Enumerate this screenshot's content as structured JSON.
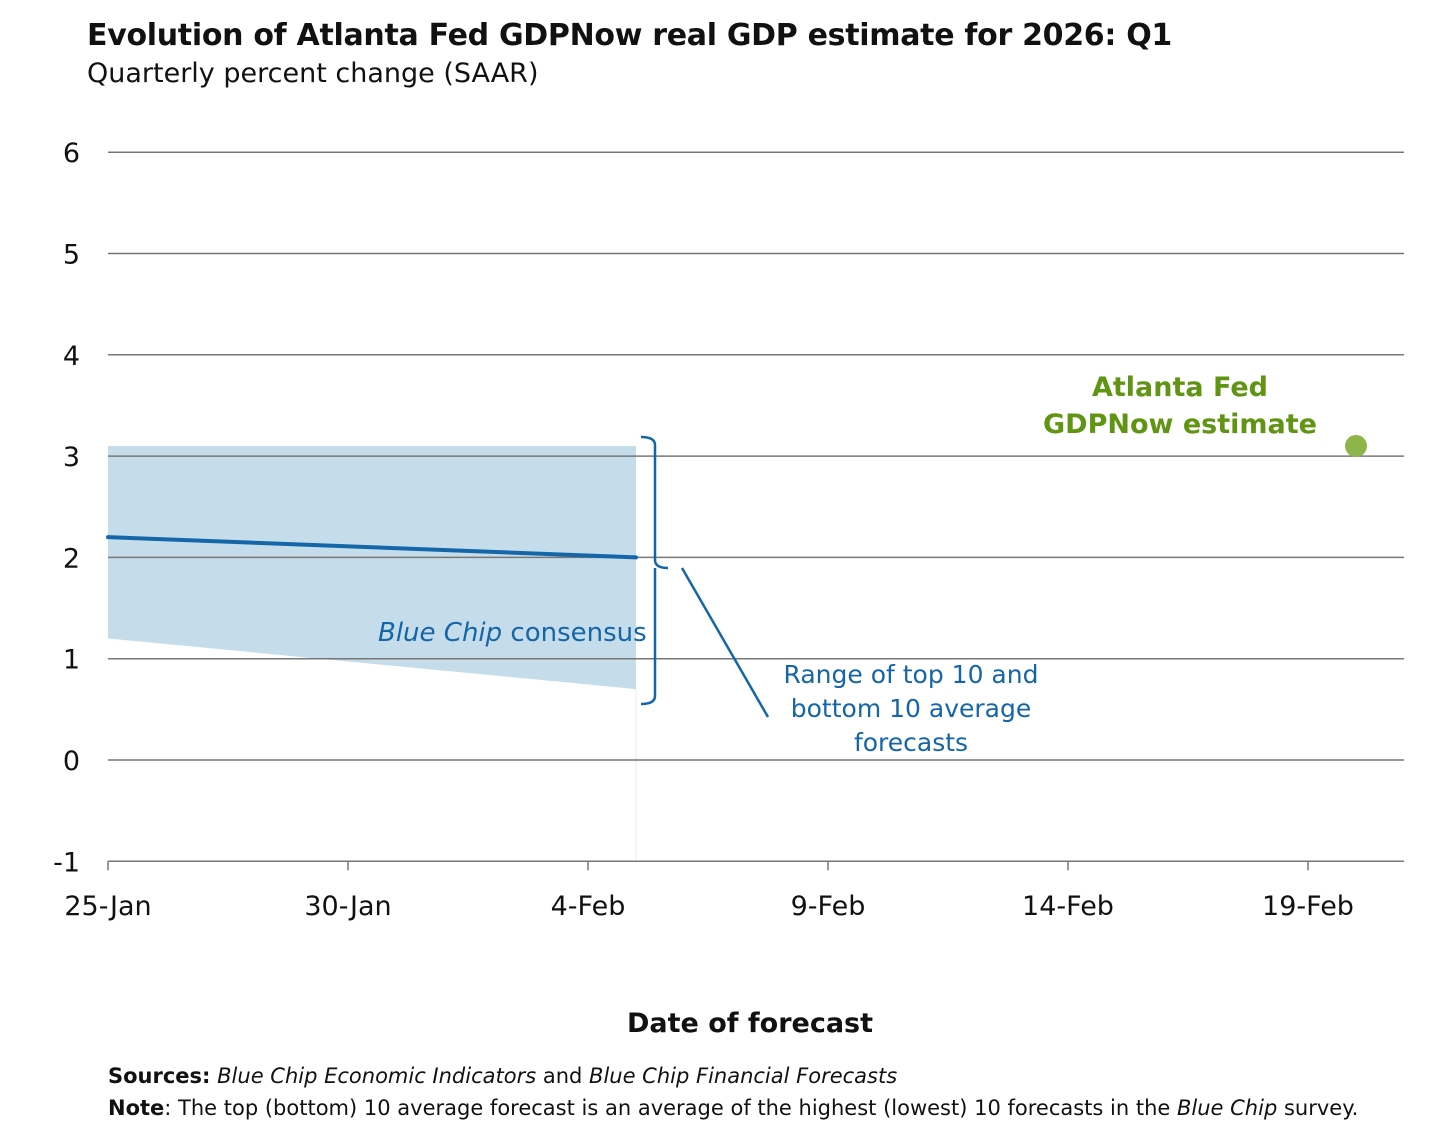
{
  "chart_data": {
    "type": "line",
    "title": "Evolution of Atlanta Fed GDPNow real GDP estimate for 2026: Q1",
    "subtitle": "Quarterly percent change (SAAR)",
    "xlabel": "Date of forecast",
    "ylabel": "",
    "ylim": [
      -1,
      6
    ],
    "yticks": [
      "-1",
      "0",
      "1",
      "2",
      "3",
      "4",
      "5",
      "6"
    ],
    "xlim_days": [
      0,
      27
    ],
    "xticks": [
      {
        "day": 0,
        "label": "25-Jan"
      },
      {
        "day": 5,
        "label": "30-Jan"
      },
      {
        "day": 10,
        "label": "4-Feb"
      },
      {
        "day": 15,
        "label": "9-Feb"
      },
      {
        "day": 20,
        "label": "14-Feb"
      },
      {
        "day": 25,
        "label": "19-Feb"
      }
    ],
    "grid": true,
    "band": {
      "name": "Range of top 10 and bottom 10 average forecasts",
      "points": [
        {
          "day": 0,
          "low": 1.2,
          "high": 3.1
        },
        {
          "day": 11,
          "low": 0.7,
          "high": 3.1
        }
      ]
    },
    "series": [
      {
        "name": "Blue Chip consensus",
        "points": [
          {
            "day": 0,
            "value": 2.2
          },
          {
            "day": 11,
            "value": 2.0
          }
        ]
      },
      {
        "name": "Atlanta Fed GDPNow estimate",
        "points": [
          {
            "day": 26,
            "value": 3.1
          }
        ]
      }
    ],
    "annotations": {
      "consensus_italic": "Blue Chip",
      "consensus_rest": " consensus",
      "range_lines": [
        "Range of top 10 and",
        "bottom 10 average",
        "forecasts"
      ],
      "gdpnow_lines": [
        "Atlanta Fed",
        "GDPNow estimate"
      ]
    },
    "colors": {
      "band": "#c5dcea",
      "line": "#1566a8",
      "gdpnow_text": "#5f9512",
      "gdpnow_dot": "#8db54a",
      "grid": "#777777"
    }
  },
  "footer": {
    "sources_label": "Sources:",
    "sources_a": "Blue Chip Economic Indicators",
    "sources_and": " and ",
    "sources_b": "Blue Chip Financial Forecasts",
    "note_label": "Note",
    "note_text": ": The top (bottom) 10 average forecast is an average of the highest (lowest) 10 forecasts in the ",
    "note_italic": "Blue Chip",
    "note_end": " survey."
  }
}
